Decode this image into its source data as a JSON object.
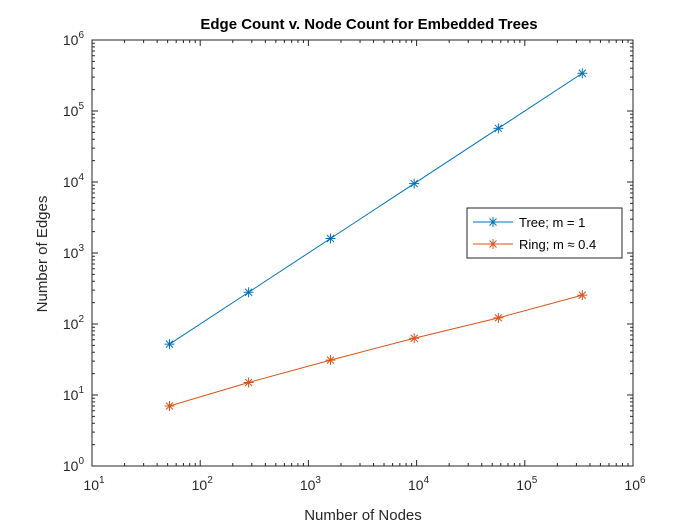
{
  "chart_data": {
    "type": "line",
    "title": "Edge Count v. Node Count for Embedded Trees",
    "xlabel": "Number of Nodes",
    "ylabel": "Number of Edges",
    "xscale": "log",
    "yscale": "log",
    "xlim": [
      10,
      1000000
    ],
    "ylim": [
      1,
      1000000
    ],
    "x_ticks": [
      {
        "base": "10",
        "exp": "1"
      },
      {
        "base": "10",
        "exp": "2"
      },
      {
        "base": "10",
        "exp": "3"
      },
      {
        "base": "10",
        "exp": "4"
      },
      {
        "base": "10",
        "exp": "5"
      },
      {
        "base": "10",
        "exp": "6"
      }
    ],
    "y_ticks": [
      {
        "base": "10",
        "exp": "0"
      },
      {
        "base": "10",
        "exp": "1"
      },
      {
        "base": "10",
        "exp": "2"
      },
      {
        "base": "10",
        "exp": "3"
      },
      {
        "base": "10",
        "exp": "4"
      },
      {
        "base": "10",
        "exp": "5"
      },
      {
        "base": "10",
        "exp": "6"
      }
    ],
    "grid": false,
    "legend_position": "right",
    "series": [
      {
        "name": "Tree; m = 1",
        "color": "#0072BD",
        "marker": "asterisk",
        "x": [
          52,
          280,
          1600,
          9500,
          57000,
          340000
        ],
        "y": [
          52,
          280,
          1600,
          9500,
          57000,
          340000
        ]
      },
      {
        "name": "Ring; m ≈ 0.4",
        "color": "#D95319",
        "marker": "asterisk",
        "x": [
          52,
          280,
          1600,
          9500,
          57000,
          340000
        ],
        "y": [
          7,
          15,
          31,
          63,
          122,
          255
        ]
      }
    ]
  }
}
